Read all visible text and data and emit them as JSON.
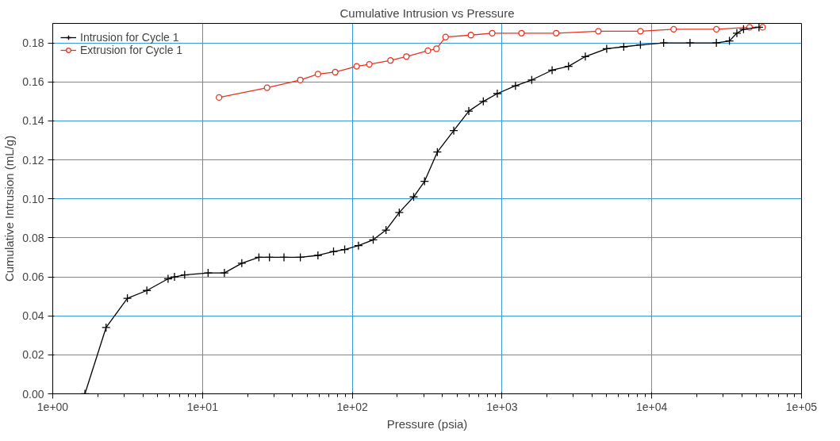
{
  "chart_data": {
    "type": "line",
    "title": "Cumulative Intrusion vs Pressure",
    "xlabel": "Pressure (psia)",
    "ylabel": "Cumulative Intrusion (mL/g)",
    "log": "x",
    "xlim": [
      1,
      100000
    ],
    "ylim": [
      0,
      0.19
    ],
    "xticks": [
      {
        "value": 1,
        "label": "1e+00"
      },
      {
        "value": 10,
        "label": "1e+01"
      },
      {
        "value": 100,
        "label": "1e+02"
      },
      {
        "value": 1000,
        "label": "1e+03"
      },
      {
        "value": 10000,
        "label": "1e+04"
      },
      {
        "value": 100000,
        "label": "1e+05"
      }
    ],
    "yticks": [
      {
        "value": 0,
        "label": "0.00"
      },
      {
        "value": 0.02,
        "label": "0.02"
      },
      {
        "value": 0.04,
        "label": "0.04"
      },
      {
        "value": 0.06,
        "label": "0.06"
      },
      {
        "value": 0.08,
        "label": "0.08"
      },
      {
        "value": 0.1,
        "label": "0.10"
      },
      {
        "value": 0.12,
        "label": "0.12"
      },
      {
        "value": 0.14,
        "label": "0.14"
      },
      {
        "value": 0.16,
        "label": "0.16"
      },
      {
        "value": 0.18,
        "label": "0.18"
      }
    ],
    "grid": true,
    "legend": "top left",
    "series": [
      {
        "name": "Intrusion for Cycle 1",
        "color": "#000000",
        "marker": "cross",
        "x": [
          1.64,
          2.27,
          3.15,
          4.25,
          5.89,
          6.5,
          7.6,
          10.9,
          14,
          18.3,
          23.8,
          28,
          35,
          45,
          59,
          75,
          89,
          110,
          138,
          168,
          206,
          257,
          304,
          370,
          476,
          600,
          750,
          930,
          1230,
          1580,
          2160,
          2780,
          3600,
          5000,
          6500,
          8400,
          12000,
          18000,
          27000,
          33000,
          37000,
          41000,
          52000
        ],
        "values": [
          0,
          0.034,
          0.049,
          0.053,
          0.059,
          0.06,
          0.061,
          0.062,
          0.062,
          0.067,
          0.07,
          0.07,
          0.07,
          0.07,
          0.071,
          0.073,
          0.074,
          0.076,
          0.079,
          0.084,
          0.093,
          0.101,
          0.109,
          0.124,
          0.135,
          0.145,
          0.15,
          0.154,
          0.158,
          0.161,
          0.166,
          0.168,
          0.173,
          0.177,
          0.178,
          0.179,
          0.18,
          0.18,
          0.18,
          0.181,
          0.185,
          0.187,
          0.188
        ]
      },
      {
        "name": "Extrusion for Cycle 1",
        "color": "#e8321e",
        "marker": "circle",
        "x": [
          12.9,
          27,
          45,
          59,
          77,
          107,
          130,
          180,
          230,
          320,
          365,
          420,
          620,
          860,
          1350,
          2300,
          4400,
          8400,
          14000,
          27000,
          45000,
          55000
        ],
        "values": [
          0.152,
          0.157,
          0.161,
          0.164,
          0.165,
          0.168,
          0.169,
          0.171,
          0.173,
          0.176,
          0.177,
          0.183,
          0.184,
          0.185,
          0.185,
          0.185,
          0.186,
          0.186,
          0.187,
          0.187,
          0.188,
          0.188
        ]
      }
    ]
  }
}
